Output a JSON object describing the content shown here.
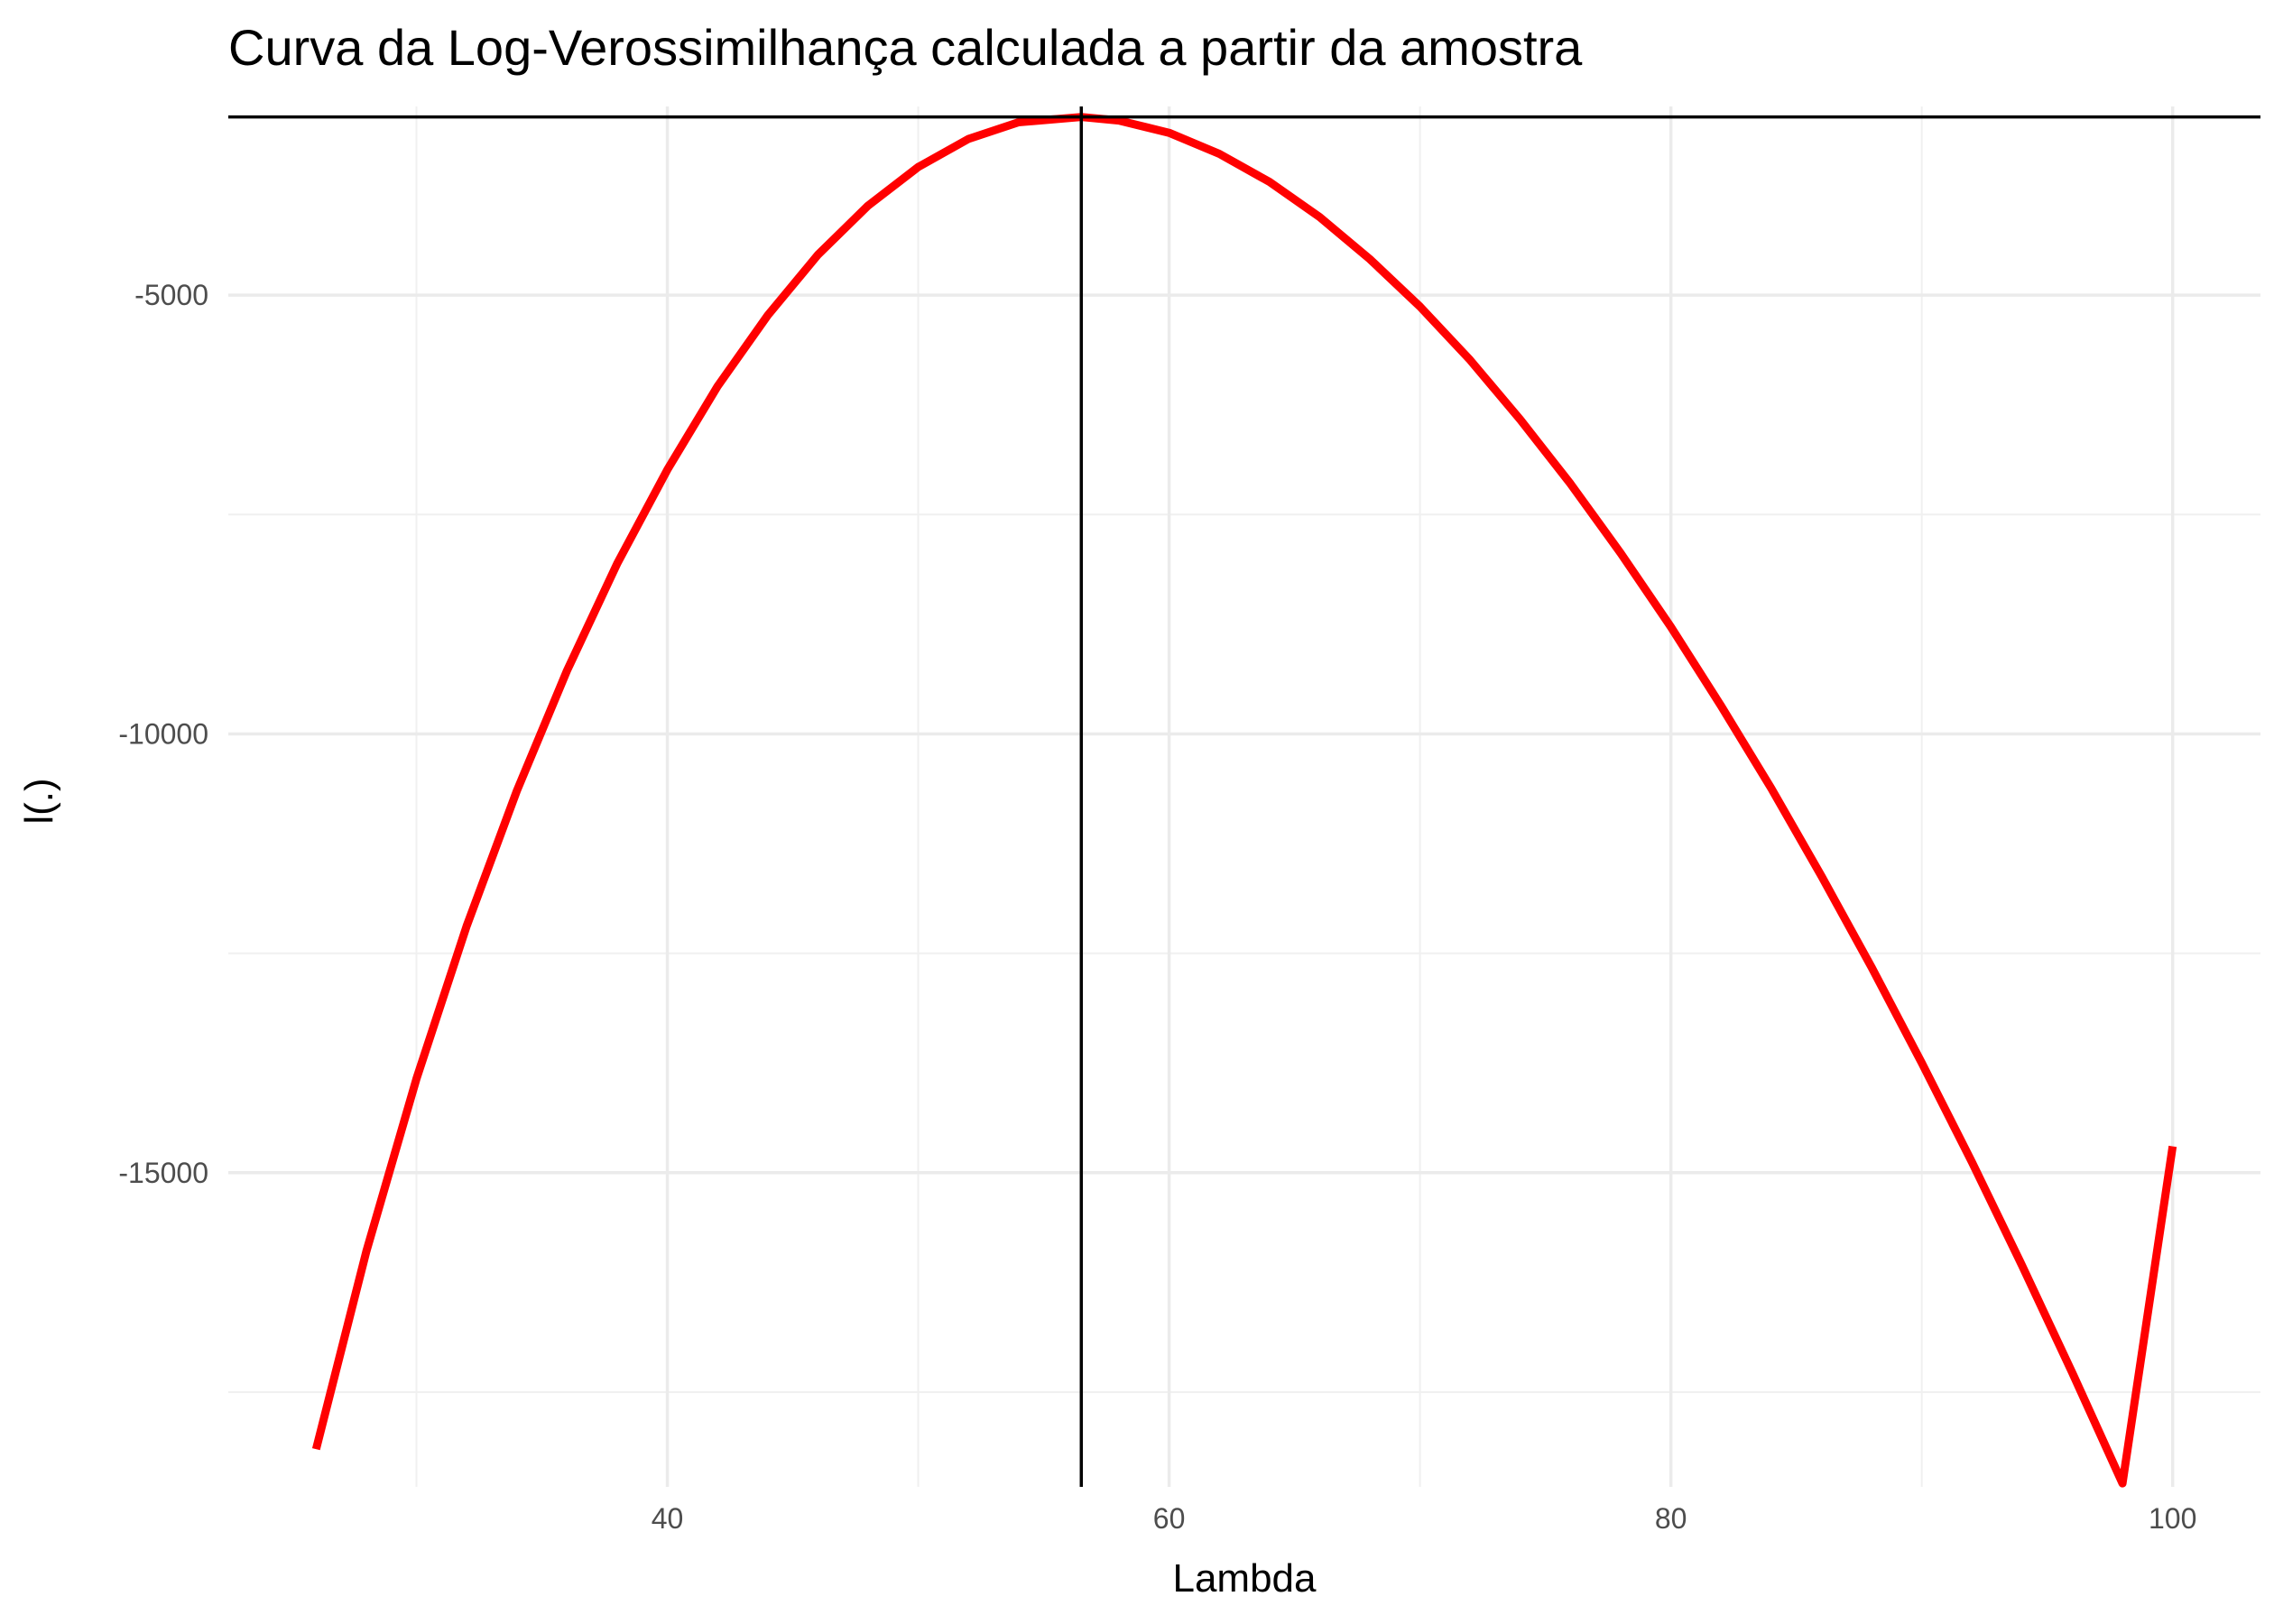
{
  "chart_data": {
    "type": "line",
    "title": "Curva da Log-Verossimilhança calculada a partir da amostra",
    "xlabel": "Lambda",
    "ylabel": "l(.)",
    "xlim": [
      22.5,
      103.5
    ],
    "ylim": [
      -18580,
      -2850
    ],
    "x_ticks": [
      40,
      60,
      80,
      100
    ],
    "x_tick_labels": [
      "40",
      "60",
      "80",
      "100"
    ],
    "x_minor_ticks": [
      30,
      50,
      70,
      90
    ],
    "y_ticks": [
      -15000,
      -10000,
      -5000
    ],
    "y_tick_labels": [
      "-15000",
      "-10000",
      "-5000"
    ],
    "y_minor_ticks": [
      -17500,
      -12500,
      -7500
    ],
    "grid": true,
    "series": [
      {
        "color": "#ff0000",
        "x": [
          26,
          28,
          30,
          32,
          34,
          36,
          38,
          40,
          42,
          44,
          46,
          48,
          50,
          52,
          54,
          56.5,
          58,
          60,
          62,
          64,
          66,
          68,
          70,
          72,
          74,
          76,
          78,
          80,
          82,
          84,
          86,
          88,
          90,
          92,
          94,
          96,
          98,
          100
        ],
        "y": [
          -18150,
          -15900,
          -13930,
          -12190,
          -10650,
          -9280,
          -8060,
          -6990,
          -6040,
          -5230,
          -4540,
          -3980,
          -3540,
          -3220,
          -3030,
          -2970,
          -3010,
          -3150,
          -3390,
          -3710,
          -4110,
          -4590,
          -5130,
          -5740,
          -6420,
          -7150,
          -7940,
          -8780,
          -9680,
          -10620,
          -11620,
          -12660,
          -13750,
          -14880,
          -16060,
          -17280,
          -18540,
          -14700
        ]
      }
    ],
    "reference_lines": {
      "vertical_x": 56.5,
      "horizontal_y": -2970,
      "color": "#000000"
    }
  }
}
